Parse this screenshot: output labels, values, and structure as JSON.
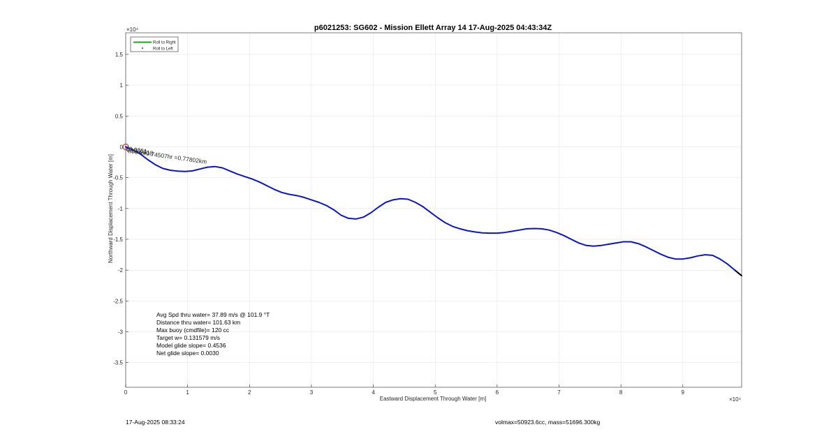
{
  "chart_data": {
    "type": "line",
    "title": "p6021253: SG602 - Mission Ellett Array 14 17-Aug-2025 04:43:34Z",
    "xlabel": "Eastward Displacement Through Water [m]",
    "ylabel": "Northward Displacement Through Water [m]",
    "x_exponent": "×10⁴",
    "y_exponent": "×10⁴",
    "xlim": [
      0,
      99500
    ],
    "ylim": [
      -39000,
      18500
    ],
    "x_ticks": [
      0,
      10000,
      20000,
      30000,
      40000,
      50000,
      60000,
      70000,
      80000,
      90000
    ],
    "x_tick_labels": [
      "0",
      "1",
      "2",
      "3",
      "4",
      "5",
      "6",
      "7",
      "8",
      "9"
    ],
    "y_ticks": [
      15000,
      10000,
      5000,
      0,
      -5000,
      -10000,
      -15000,
      -20000,
      -25000,
      -30000,
      -35000
    ],
    "y_tick_labels": [
      "1.5",
      "1",
      "0.5",
      "0",
      "-0.5",
      "-1",
      "-1.5",
      "-2",
      "-2.5",
      "-3",
      "-3.5"
    ],
    "grid": true,
    "legend_position": "top-left",
    "legend": [
      {
        "label": "Roll to Right",
        "color": "#1aa51a",
        "style": "line"
      },
      {
        "label": "Roll to Left",
        "color": "#000000",
        "style": "dot"
      }
    ],
    "series": [
      {
        "color": "#0a14c8",
        "x": [
          0,
          1200,
          2400,
          3600,
          4800,
          6000,
          7200,
          8400,
          9600,
          10800,
          12000,
          13200,
          14400,
          15600,
          16800,
          18000,
          19200,
          20400,
          21600,
          22800,
          24000,
          25200,
          26400,
          27600,
          28800,
          30000,
          31200,
          32400,
          33600,
          34800,
          36000,
          37200,
          38400,
          39600,
          40800,
          42000,
          43200,
          44400,
          45600,
          46800,
          48000,
          49200,
          50400,
          51600,
          52800,
          54000,
          55200,
          56400,
          57600,
          58800,
          60000,
          61200,
          62400,
          63600,
          64800,
          66000,
          67200,
          68400,
          69600,
          70800,
          72000,
          73200,
          74400,
          75600,
          76800,
          78000,
          79200,
          80400,
          81600,
          82800,
          84000,
          85200,
          86400,
          87600,
          88800,
          90000,
          91200,
          92400,
          93600,
          94800,
          96000,
          97200,
          98400,
          99500
        ],
        "y": [
          0,
          -500,
          -1200,
          -2100,
          -2900,
          -3500,
          -3800,
          -3950,
          -4000,
          -3900,
          -3600,
          -3300,
          -3200,
          -3400,
          -3900,
          -4400,
          -4800,
          -5200,
          -5700,
          -6300,
          -6900,
          -7400,
          -7700,
          -7900,
          -8200,
          -8600,
          -9000,
          -9500,
          -10200,
          -11100,
          -11600,
          -11700,
          -11400,
          -10700,
          -9800,
          -9000,
          -8600,
          -8400,
          -8500,
          -9000,
          -9700,
          -10600,
          -11500,
          -12300,
          -12900,
          -13300,
          -13600,
          -13800,
          -13950,
          -14000,
          -14000,
          -13900,
          -13700,
          -13500,
          -13300,
          -13250,
          -13300,
          -13500,
          -13900,
          -14400,
          -15000,
          -15600,
          -16000,
          -16100,
          -16000,
          -15800,
          -15600,
          -15400,
          -15400,
          -15700,
          -16200,
          -16800,
          -17400,
          -17900,
          -18200,
          -18200,
          -18000,
          -17700,
          -17500,
          -17600,
          -18200,
          -19000,
          -20000,
          -20900
        ]
      }
    ],
    "start_marker": {
      "x": 0,
      "y": 0,
      "color": "#c0504d"
    },
    "annotation": {
      "text": "m/s for0.74507hr =0.77802km",
      "x": 200,
      "y": -500,
      "rotation_deg": 8
    },
    "overlap_labels": [
      "98.0261",
      "20260818"
    ],
    "stats_lines": [
      "Avg Spd thru water= 37.89 m/s @ 101.9 °T",
      "Distance thru water= 101.63 km",
      "Max buoy (cmdfile)= 120 cc",
      "Target w= 0.131579 m/s",
      "Model glide slope= 0.4536",
      "Net glide slope= 0.0030"
    ]
  },
  "footer": {
    "date": "17-Aug-2025 08:33:24",
    "vol_mass": "volmax=50923.6cc, mass=51696.300kg"
  }
}
